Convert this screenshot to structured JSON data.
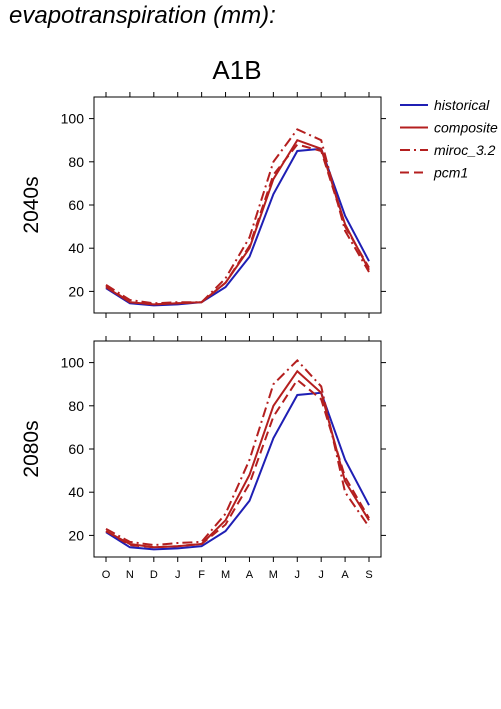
{
  "page_title": "evapotranspiration (mm):",
  "chart_data": {
    "type": "line",
    "title": "A1B",
    "months": [
      "O",
      "N",
      "D",
      "J",
      "F",
      "M",
      "A",
      "M",
      "J",
      "J",
      "A",
      "S"
    ],
    "ylim": [
      10,
      110
    ],
    "yticks": [
      20,
      40,
      60,
      80,
      100
    ],
    "legend": {
      "placement": "right",
      "entries": [
        {
          "name": "historical",
          "color": "#1f1fb4",
          "dash": "solid"
        },
        {
          "name": "composite",
          "color": "#b41f1f",
          "dash": "solid"
        },
        {
          "name": "miroc_3.2",
          "color": "#b41f1f",
          "dash": "dashdot"
        },
        {
          "name": "pcm1",
          "color": "#b41f1f",
          "dash": "dashed"
        }
      ]
    },
    "panels": [
      {
        "label": "2040s",
        "series": [
          {
            "name": "historical",
            "values": [
              21.5,
              14.5,
              13.5,
              14,
              15,
              22,
              36,
              65,
              85,
              86,
              55,
              34
            ]
          },
          {
            "name": "composite",
            "values": [
              22,
              15,
              14,
              14.5,
              15,
              24,
              40,
              72,
              90,
              86,
              51,
              30
            ]
          },
          {
            "name": "miroc_3.2",
            "values": [
              23,
              16,
              14.5,
              15,
              15,
              26,
              45,
              80,
              95,
              90,
              48,
              29
            ]
          },
          {
            "name": "pcm1",
            "values": [
              22.5,
              15,
              14,
              14.5,
              15,
              24,
              41,
              74,
              88,
              85,
              50,
              31
            ]
          }
        ]
      },
      {
        "label": "2080s",
        "series": [
          {
            "name": "historical",
            "values": [
              21.5,
              14.5,
              13.5,
              14,
              15,
              22,
              36,
              65,
              85,
              86,
              55,
              34
            ]
          },
          {
            "name": "composite",
            "values": [
              22,
              16,
              14.5,
              15,
              16,
              27,
              48,
              80,
              96,
              86,
              45,
              27
            ]
          },
          {
            "name": "miroc_3.2",
            "values": [
              23,
              17,
              15.5,
              16.5,
              17,
              30,
              55,
              90,
              101,
              89,
              40,
              24
            ]
          },
          {
            "name": "pcm1",
            "values": [
              22,
              15.5,
              14.5,
              15,
              16,
              25,
              44,
              75,
              92,
              83,
              47,
              28
            ]
          }
        ]
      }
    ]
  }
}
